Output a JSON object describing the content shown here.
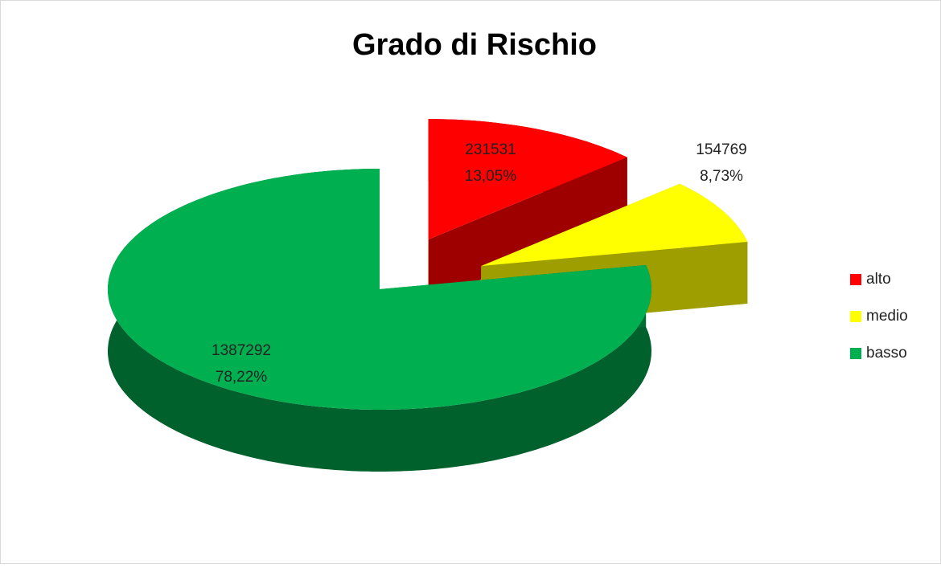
{
  "chart_data": {
    "type": "pie",
    "title": "Grado di Rischio",
    "categories": [
      "alto",
      "medio",
      "basso"
    ],
    "values": [
      231531,
      154769,
      1387292
    ],
    "percentages": [
      13.05,
      8.73,
      78.22
    ],
    "percentage_labels": [
      "13,05%",
      "8,73%",
      "78,22%"
    ],
    "colors": [
      "#ff0000",
      "#ffff00",
      "#00b050"
    ],
    "legend": "right"
  }
}
